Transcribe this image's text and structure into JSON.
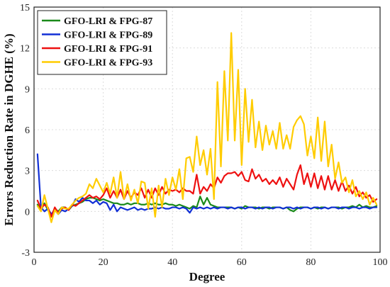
{
  "chart_data": {
    "type": "line",
    "title": "",
    "xlabel": "Degree",
    "ylabel": "Errors Reduction Rate in DGHE  (%)",
    "xlim": [
      0,
      100
    ],
    "ylim": [
      -3,
      15
    ],
    "xticks": [
      0,
      20,
      40,
      60,
      80,
      100
    ],
    "yticks": [
      -3,
      0,
      3,
      6,
      9,
      12,
      15
    ],
    "xtick_labels": [
      "0",
      "20",
      "40",
      "60",
      "80",
      "100"
    ],
    "ytick_labels": [
      "-3",
      "0",
      "3",
      "6",
      "9",
      "12",
      "15"
    ],
    "grid": true,
    "legend_position": "top-left",
    "x": [
      1,
      2,
      3,
      4,
      5,
      6,
      7,
      8,
      9,
      10,
      11,
      12,
      13,
      14,
      15,
      16,
      17,
      18,
      19,
      20,
      21,
      22,
      23,
      24,
      25,
      26,
      27,
      28,
      29,
      30,
      31,
      32,
      33,
      34,
      35,
      36,
      37,
      38,
      39,
      40,
      41,
      42,
      43,
      44,
      45,
      46,
      47,
      48,
      49,
      50,
      51,
      52,
      53,
      54,
      55,
      56,
      57,
      58,
      59,
      60,
      61,
      62,
      63,
      64,
      65,
      66,
      67,
      68,
      69,
      70,
      71,
      72,
      73,
      74,
      75,
      76,
      77,
      78,
      79,
      80,
      81,
      82,
      83,
      84,
      85,
      86,
      87,
      88,
      89,
      90,
      91,
      92,
      93,
      94,
      95,
      96,
      97,
      98,
      99
    ],
    "series": [
      {
        "name": "GFO-LRI & FPG-87",
        "color": "#1a8a1a",
        "values": [
          0.5,
          0.1,
          0.6,
          0.1,
          -0.3,
          0.2,
          0.0,
          0.3,
          0.3,
          0.1,
          0.4,
          0.5,
          0.6,
          0.7,
          0.9,
          1.0,
          1.0,
          0.9,
          0.8,
          0.9,
          0.8,
          0.7,
          0.6,
          0.6,
          0.5,
          0.5,
          0.6,
          0.5,
          0.6,
          0.6,
          0.5,
          0.5,
          0.6,
          0.5,
          0.6,
          0.5,
          0.5,
          0.6,
          0.5,
          0.5,
          0.4,
          0.5,
          0.4,
          0.3,
          0.2,
          0.4,
          0.3,
          1.1,
          0.5,
          1.0,
          0.5,
          0.4,
          0.3,
          0.3,
          0.3,
          0.3,
          0.3,
          0.2,
          0.3,
          0.2,
          0.4,
          0.3,
          0.3,
          0.3,
          0.2,
          0.3,
          0.3,
          0.2,
          0.3,
          0.3,
          0.3,
          0.2,
          0.3,
          0.1,
          0.0,
          0.2,
          0.3,
          0.3,
          0.3,
          0.2,
          0.3,
          0.2,
          0.3,
          0.3,
          0.2,
          0.3,
          0.3,
          0.3,
          0.2,
          0.3,
          0.3,
          0.4,
          0.3,
          0.5,
          0.3,
          0.4,
          0.3,
          0.3,
          0.4
        ]
      },
      {
        "name": "GFO-LRI & FPG-89",
        "color": "#1230d6",
        "values": [
          4.2,
          0.3,
          0.0,
          0.2,
          -0.2,
          0.1,
          -0.2,
          0.1,
          0.0,
          0.2,
          0.4,
          0.9,
          0.7,
          1.0,
          0.8,
          0.8,
          0.6,
          0.8,
          0.5,
          0.7,
          0.6,
          0.1,
          0.5,
          0.0,
          0.3,
          0.2,
          0.1,
          0.2,
          0.3,
          0.1,
          0.2,
          0.1,
          0.2,
          0.2,
          0.3,
          0.2,
          0.3,
          0.2,
          0.2,
          0.3,
          0.3,
          0.2,
          0.3,
          0.2,
          -0.1,
          0.3,
          0.2,
          0.3,
          0.2,
          0.3,
          0.2,
          0.3,
          0.2,
          0.3,
          0.3,
          0.2,
          0.3,
          0.2,
          0.3,
          0.3,
          0.2,
          0.3,
          0.3,
          0.2,
          0.3,
          0.2,
          0.3,
          0.3,
          0.2,
          0.3,
          0.3,
          0.2,
          0.3,
          0.3,
          0.2,
          0.3,
          0.2,
          0.3,
          0.3,
          0.2,
          0.3,
          0.3,
          0.2,
          0.3,
          0.2,
          0.3,
          0.3,
          0.2,
          0.3,
          0.3,
          0.2,
          0.3,
          0.3,
          0.2,
          0.3,
          0.3,
          0.2,
          0.3,
          0.3
        ]
      },
      {
        "name": "GFO-LRI & FPG-91",
        "color": "#ee1111",
        "values": [
          0.8,
          0.2,
          0.5,
          0.3,
          -0.4,
          0.3,
          -0.1,
          0.2,
          0.3,
          0.1,
          0.5,
          0.4,
          0.6,
          0.8,
          1.0,
          1.2,
          1.0,
          1.1,
          0.9,
          1.2,
          1.7,
          1.0,
          1.5,
          1.0,
          1.6,
          0.9,
          1.5,
          1.0,
          1.4,
          1.2,
          1.7,
          1.0,
          1.6,
          1.0,
          1.7,
          1.2,
          1.8,
          1.3,
          1.6,
          1.5,
          1.6,
          1.4,
          1.7,
          1.5,
          1.5,
          1.3,
          2.7,
          1.3,
          1.8,
          1.5,
          2.0,
          1.7,
          2.5,
          2.1,
          2.6,
          2.8,
          2.8,
          2.9,
          2.6,
          2.9,
          2.3,
          2.2,
          3.1,
          2.4,
          2.7,
          2.2,
          2.4,
          2.0,
          2.3,
          2.0,
          2.5,
          1.8,
          2.4,
          2.0,
          1.6,
          2.7,
          3.4,
          2.0,
          2.8,
          1.8,
          2.8,
          1.7,
          2.6,
          1.6,
          2.6,
          1.6,
          2.3,
          1.5,
          2.2,
          1.5,
          1.9,
          1.3,
          1.8,
          1.1,
          1.4,
          1.0,
          1.2,
          0.7,
          0.9
        ]
      },
      {
        "name": "GFO-LRI & FPG-93",
        "color": "#ffcc00",
        "values": [
          0.4,
          0.0,
          1.2,
          0.2,
          -0.8,
          0.1,
          -0.2,
          0.3,
          0.2,
          0.2,
          0.5,
          0.8,
          1.0,
          1.1,
          1.3,
          2.0,
          1.7,
          2.4,
          1.9,
          1.4,
          2.1,
          1.3,
          2.5,
          1.0,
          2.9,
          0.9,
          2.0,
          0.8,
          1.6,
          0.6,
          2.2,
          2.1,
          0.2,
          1.7,
          -0.4,
          1.9,
          0.3,
          2.4,
          1.2,
          2.5,
          1.6,
          3.1,
          0.9,
          3.9,
          4.0,
          2.9,
          5.5,
          3.4,
          4.5,
          2.7,
          4.6,
          0.9,
          9.5,
          3.3,
          10.3,
          5.2,
          13.1,
          5.2,
          10.4,
          3.4,
          9.0,
          5.1,
          8.2,
          4.7,
          6.6,
          4.5,
          6.3,
          4.9,
          5.9,
          4.6,
          6.5,
          4.6,
          5.6,
          4.6,
          6.2,
          6.7,
          7.0,
          6.4,
          4.1,
          5.5,
          3.9,
          6.9,
          3.7,
          6.6,
          3.3,
          4.9,
          2.4,
          3.6,
          2.1,
          2.5,
          1.4,
          2.3,
          1.1,
          1.5,
          0.9,
          1.4,
          0.5,
          1.0,
          0.5
        ]
      }
    ]
  }
}
